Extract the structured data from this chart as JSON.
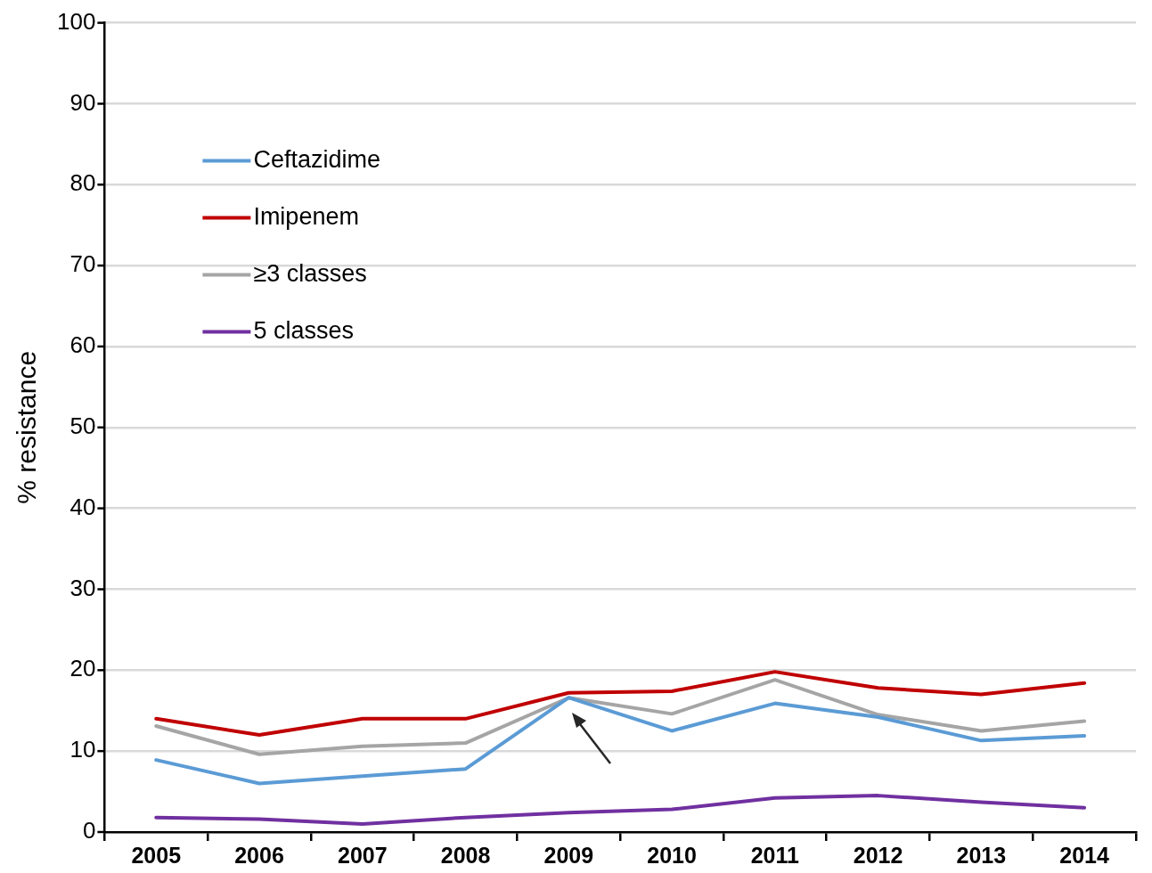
{
  "chart_data": {
    "type": "line",
    "ylabel": "% resistance",
    "categories": [
      "2005",
      "2006",
      "2007",
      "2008",
      "2009",
      "2010",
      "2011",
      "2012",
      "2013",
      "2014"
    ],
    "series": [
      {
        "name": "Ceftazidime",
        "color": "#5b9bd5",
        "values": [
          8.9,
          6.0,
          6.9,
          7.8,
          16.6,
          12.5,
          15.9,
          14.2,
          11.3,
          11.9
        ]
      },
      {
        "name": "Imipenem",
        "color": "#c00000",
        "values": [
          14.0,
          12.0,
          14.0,
          14.0,
          17.2,
          17.4,
          19.8,
          17.8,
          17.0,
          18.4
        ]
      },
      {
        "name": "≥3 classes",
        "color": "#a5a5a5",
        "values": [
          13.1,
          9.6,
          10.6,
          11.0,
          16.6,
          14.6,
          18.8,
          14.5,
          12.5,
          13.7
        ]
      },
      {
        "name": "5 classes",
        "color": "#7030a0",
        "values": [
          1.8,
          1.6,
          1.0,
          1.8,
          2.4,
          2.8,
          4.2,
          4.5,
          3.7,
          3.0
        ]
      }
    ],
    "ylim": [
      0,
      100
    ],
    "yticks": [
      0,
      10,
      20,
      30,
      40,
      50,
      60,
      70,
      80,
      90,
      100
    ],
    "grid": "y",
    "legend": "top left",
    "marker": "none",
    "line_style": "solid"
  }
}
